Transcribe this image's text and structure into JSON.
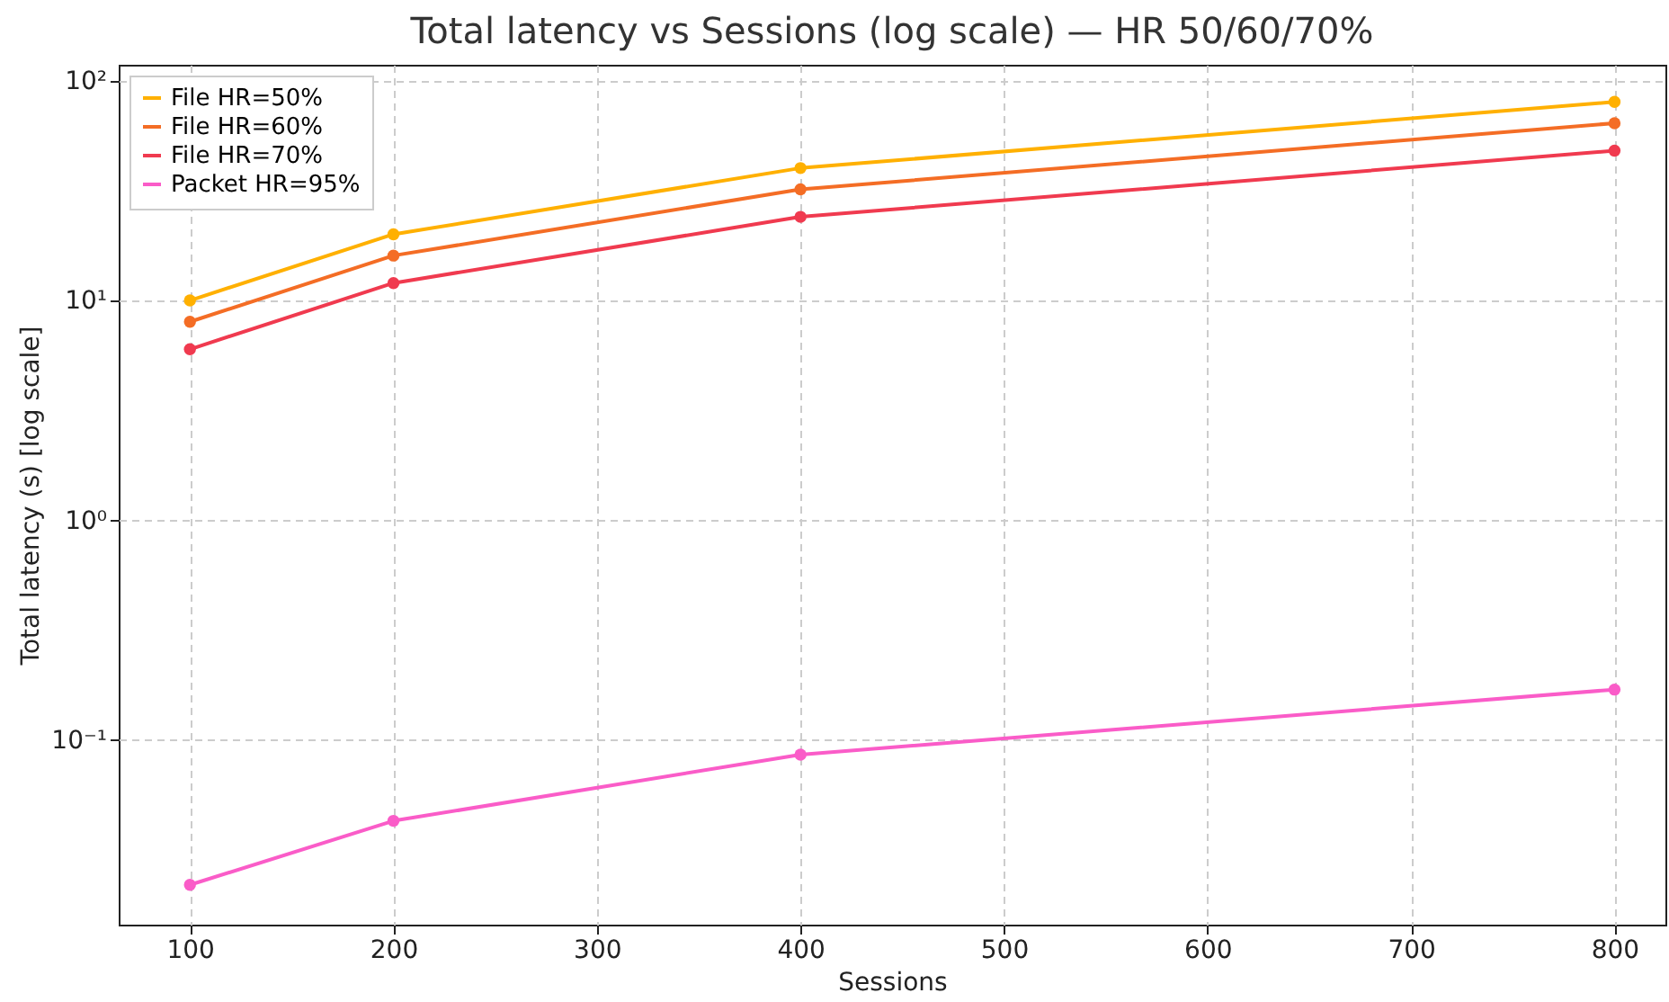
{
  "chart_data": {
    "type": "line",
    "title": "Total latency vs Sessions (log scale) — HR 50/60/70%",
    "xlabel": "Sessions",
    "ylabel": "Total latency (s) [log scale]",
    "x": [
      100,
      200,
      400,
      800
    ],
    "series": [
      {
        "name": "File HR=50%",
        "color": "#ffb000",
        "values": [
          10,
          20,
          40,
          80
        ]
      },
      {
        "name": "File HR=60%",
        "color": "#f46d25",
        "values": [
          8,
          16,
          32,
          64
        ]
      },
      {
        "name": "File HR=70%",
        "color": "#f03a4f",
        "values": [
          6,
          12,
          24,
          48
        ]
      },
      {
        "name": "Packet HR=95%",
        "color": "#fa5cc8",
        "values": [
          0.022,
          0.043,
          0.086,
          0.17
        ]
      }
    ],
    "log": "y",
    "xlim": [
      65,
      825
    ],
    "xticks": [
      100,
      200,
      300,
      400,
      500,
      600,
      700,
      800
    ],
    "ylim": [
      0.0145,
      118
    ],
    "yticks": [
      {
        "value": 0.1,
        "label": "10⁻¹"
      },
      {
        "value": 1,
        "label": "10⁰"
      },
      {
        "value": 10,
        "label": "10¹"
      },
      {
        "value": 100,
        "label": "10²"
      }
    ],
    "grid": true,
    "legend": "top left",
    "marker": "circle",
    "line_style": "solid"
  }
}
